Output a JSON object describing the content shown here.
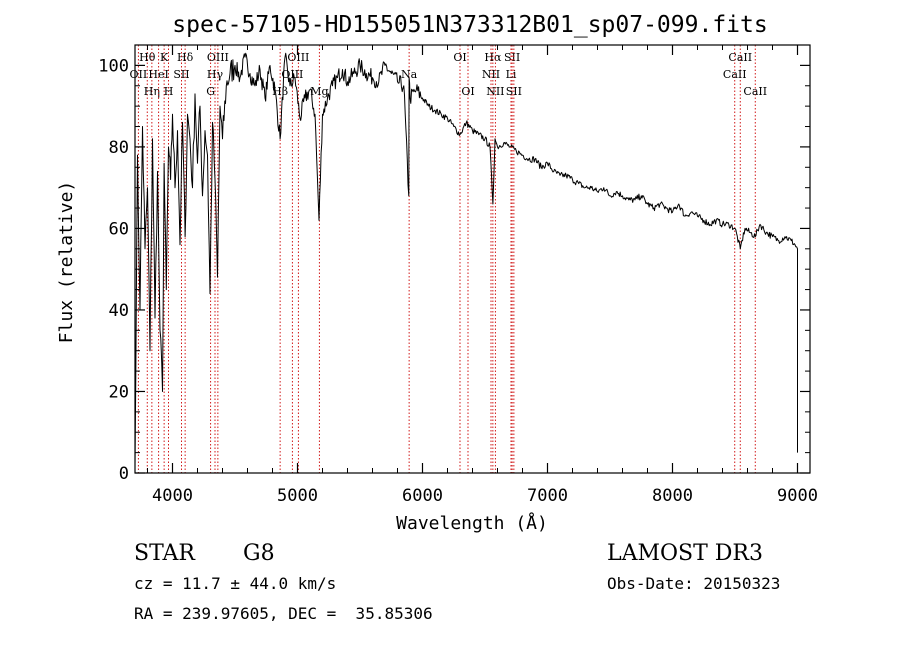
{
  "chart_data": {
    "type": "line",
    "title": "spec-57105-HD155051N373312B01_sp07-099.fits",
    "xlabel": "Wavelength (Å)",
    "ylabel": "Flux (relative)",
    "xlim": [
      3700,
      9100
    ],
    "ylim": [
      0,
      105
    ],
    "x_ticks": [
      4000,
      5000,
      6000,
      7000,
      8000,
      9000
    ],
    "y_ticks": [
      0,
      20,
      40,
      60,
      80,
      100
    ],
    "x_tick_labels": [
      "4000",
      "5000",
      "6000",
      "7000",
      "8000",
      "9000"
    ],
    "y_tick_labels": [
      "0",
      "20",
      "40",
      "60",
      "80",
      "100"
    ],
    "series": [
      {
        "name": "flux",
        "x": [
          3700,
          3720,
          3740,
          3760,
          3780,
          3800,
          3820,
          3840,
          3860,
          3880,
          3900,
          3920,
          3933,
          3950,
          3968,
          3985,
          4000,
          4020,
          4040,
          4060,
          4080,
          4101,
          4120,
          4140,
          4160,
          4180,
          4200,
          4220,
          4240,
          4260,
          4280,
          4300,
          4320,
          4340,
          4360,
          4380,
          4400,
          4430,
          4460,
          4500,
          4540,
          4580,
          4620,
          4660,
          4700,
          4740,
          4780,
          4820,
          4861,
          4900,
          4940,
          4980,
          5020,
          5060,
          5100,
          5140,
          5172,
          5200,
          5240,
          5280,
          5320,
          5360,
          5400,
          5450,
          5500,
          5550,
          5600,
          5650,
          5700,
          5750,
          5800,
          5850,
          5890,
          5893,
          5900,
          5950,
          6000,
          6050,
          6100,
          6150,
          6200,
          6250,
          6300,
          6350,
          6400,
          6450,
          6500,
          6540,
          6563,
          6580,
          6600,
          6650,
          6700,
          6750,
          6800,
          6850,
          6900,
          6950,
          7000,
          7050,
          7100,
          7150,
          7200,
          7250,
          7300,
          7350,
          7400,
          7450,
          7500,
          7550,
          7600,
          7650,
          7700,
          7750,
          7800,
          7850,
          7900,
          7950,
          8000,
          8050,
          8100,
          8150,
          8200,
          8250,
          8300,
          8350,
          8400,
          8450,
          8500,
          8542,
          8580,
          8620,
          8662,
          8700,
          8750,
          8800,
          8850,
          8900,
          8950,
          8980,
          9000
        ],
        "y": [
          2,
          78,
          40,
          85,
          55,
          70,
          30,
          82,
          38,
          74,
          35,
          20,
          76,
          45,
          80,
          72,
          88,
          70,
          84,
          56,
          86,
          58,
          88,
          82,
          70,
          93,
          76,
          90,
          68,
          84,
          78,
          44,
          86,
          72,
          48,
          90,
          82,
          95,
          98,
          100,
          97,
          102,
          98,
          95,
          99,
          92,
          100,
          94,
          82,
          102,
          95,
          97,
          87,
          92,
          94,
          88,
          62,
          88,
          92,
          95,
          97,
          99,
          96,
          98,
          100,
          98,
          97,
          96,
          100,
          98,
          96,
          95,
          68,
          97,
          92,
          94,
          92,
          90,
          89,
          88,
          87,
          85,
          83,
          86,
          84,
          83,
          82,
          80,
          66,
          82,
          80,
          81,
          80,
          79,
          78,
          77,
          77,
          75,
          76,
          74,
          73,
          73,
          72,
          71,
          70,
          70,
          69,
          70,
          68,
          69,
          68,
          67,
          67,
          68,
          66,
          65,
          66,
          65,
          64,
          66,
          63,
          64,
          63,
          62,
          61,
          62,
          61,
          61,
          60,
          55,
          60,
          59,
          58,
          61,
          59,
          58,
          57,
          58,
          57,
          56,
          55
        ]
      }
    ],
    "line_markers": [
      {
        "label": "Hθ",
        "x": 3798,
        "row": 1
      },
      {
        "label": "OII",
        "x": 3727,
        "row": 2
      },
      {
        "label": "Hη",
        "x": 3835,
        "row": 3
      },
      {
        "label": "K",
        "x": 3933,
        "row": 1
      },
      {
        "label": "HeI",
        "x": 3889,
        "row": 2
      },
      {
        "label": "H",
        "x": 3968,
        "row": 3
      },
      {
        "label": "Hδ",
        "x": 4101,
        "row": 1
      },
      {
        "label": "SII",
        "x": 4072,
        "row": 2
      },
      {
        "label": "OIII",
        "x": 4363,
        "row": 1
      },
      {
        "label": "Hγ",
        "x": 4340,
        "row": 2
      },
      {
        "label": "G",
        "x": 4305,
        "row": 3
      },
      {
        "label": "OIII",
        "x": 5007,
        "row": 1
      },
      {
        "label": "OIII",
        "x": 4959,
        "row": 2
      },
      {
        "label": "Hβ",
        "x": 4861,
        "row": 3
      },
      {
        "label": "Mg",
        "x": 5175,
        "row": 3
      },
      {
        "label": "Na",
        "x": 5893,
        "row": 2
      },
      {
        "label": "OI",
        "x": 6300,
        "row": 1
      },
      {
        "label": "OI",
        "x": 6364,
        "row": 3
      },
      {
        "label": "Hα",
        "x": 6563,
        "row": 1
      },
      {
        "label": "SII",
        "x": 6717,
        "row": 1
      },
      {
        "label": "NII",
        "x": 6548,
        "row": 2
      },
      {
        "label": "Li",
        "x": 6708,
        "row": 2
      },
      {
        "label": "NII",
        "x": 6583,
        "row": 3
      },
      {
        "label": "SII",
        "x": 6731,
        "row": 3
      },
      {
        "label": "CaII",
        "x": 8542,
        "row": 1
      },
      {
        "label": "CaII",
        "x": 8498,
        "row": 2
      },
      {
        "label": "CaII",
        "x": 8662,
        "row": 3
      }
    ]
  },
  "info": {
    "object_class": "STAR",
    "subclass": "G8",
    "survey": "LAMOST DR3",
    "redshift_line": "cz = 11.7 ± 44.0 km/s",
    "obs_date_line": "Obs-Date: 20150323",
    "coords_line": "RA = 239.97605, DEC =  35.85306"
  },
  "colors": {
    "spectrum": "#000000",
    "marker_line": "#cc0000",
    "axis": "#000000",
    "background": "#ffffff"
  }
}
